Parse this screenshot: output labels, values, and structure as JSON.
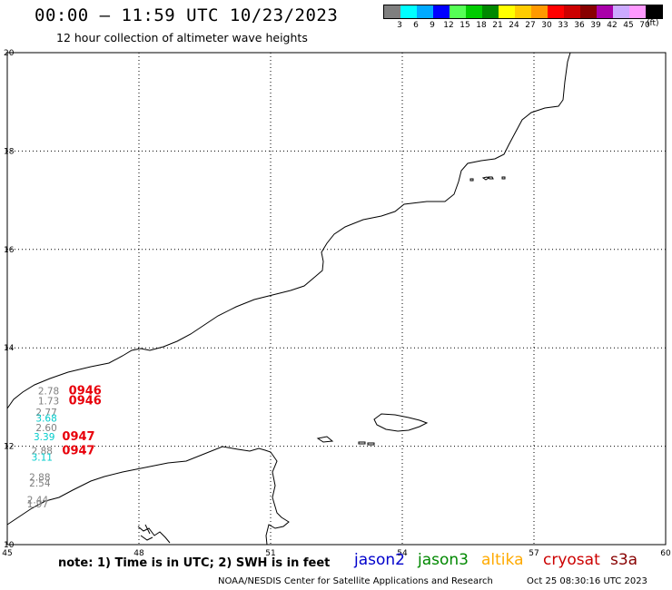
{
  "header": {
    "title": "00:00 – 11:59 UTC 10/23/2023",
    "subtitle": "12 hour collection of altimeter wave heights"
  },
  "legend": {
    "colors": [
      "#7f7f7f",
      "#00ffff",
      "#00aaff",
      "#0000ff",
      "#55ff55",
      "#00cc00",
      "#008800",
      "#ffff00",
      "#ffcc00",
      "#ff9900",
      "#ff0000",
      "#cc0000",
      "#880000",
      "#aa00aa",
      "#ccaaff",
      "#ff99ff",
      "#000000"
    ],
    "labels": [
      "3",
      "6",
      "9",
      "12",
      "15",
      "18",
      "21",
      "24",
      "27",
      "30",
      "33",
      "36",
      "39",
      "42",
      "45",
      "70"
    ],
    "unit": "(ft)"
  },
  "axes": {
    "x_ticks": [
      "45",
      "48",
      "51",
      "54",
      "57",
      "60"
    ],
    "y_ticks": [
      "20",
      "18",
      "16",
      "14",
      "12",
      "10"
    ],
    "lon_range": [
      45,
      60
    ],
    "lat_range": [
      10,
      20
    ]
  },
  "observations": [
    {
      "text": "2.78",
      "color": "#7f7f7f",
      "lon": 45.7,
      "lat": 13.05
    },
    {
      "text": "1.73",
      "color": "#7f7f7f",
      "lon": 45.7,
      "lat": 12.85
    },
    {
      "text": "2.77",
      "color": "#7f7f7f",
      "lon": 45.65,
      "lat": 12.62
    },
    {
      "text": "3.68",
      "color": "#00cccc",
      "lon": 45.65,
      "lat": 12.5
    },
    {
      "text": "2.60",
      "color": "#7f7f7f",
      "lon": 45.65,
      "lat": 12.31
    },
    {
      "text": "3.39",
      "color": "#00cccc",
      "lon": 45.6,
      "lat": 12.12
    },
    {
      "text": "2.88",
      "color": "#7f7f7f",
      "lon": 45.55,
      "lat": 11.84
    },
    {
      "text": "3.11",
      "color": "#00cccc",
      "lon": 45.55,
      "lat": 11.71
    },
    {
      "text": "2.88",
      "color": "#7f7f7f",
      "lon": 45.5,
      "lat": 11.3
    },
    {
      "text": "2.54",
      "color": "#7f7f7f",
      "lon": 45.5,
      "lat": 11.18
    },
    {
      "text": "2.44",
      "color": "#7f7f7f",
      "lon": 45.45,
      "lat": 10.84
    },
    {
      "text": "1.97",
      "color": "#7f7f7f",
      "lon": 45.45,
      "lat": 10.76
    }
  ],
  "pass_times": [
    {
      "text": "0946",
      "lon": 46.4,
      "lat": 13.05
    },
    {
      "text": "0946",
      "lon": 46.4,
      "lat": 12.85
    },
    {
      "text": "0947",
      "lon": 46.25,
      "lat": 12.12
    },
    {
      "text": "0947",
      "lon": 46.25,
      "lat": 11.84
    }
  ],
  "footer": {
    "note": "note: 1) Time is in UTC; 2) SWH is in feet",
    "satellites": [
      {
        "name": "jason2",
        "color": "#0000cc"
      },
      {
        "name": "jason3",
        "color": "#008800"
      },
      {
        "name": "altika",
        "color": "#ffaa00"
      },
      {
        "name": "cryosat",
        "color": "#cc0000"
      },
      {
        "name": "s3a",
        "color": "#880000"
      }
    ],
    "credit": "NOAA/NESDIS Center for Satellite Applications and Research",
    "timestamp": "Oct 25 08:30:16 UTC 2023"
  }
}
